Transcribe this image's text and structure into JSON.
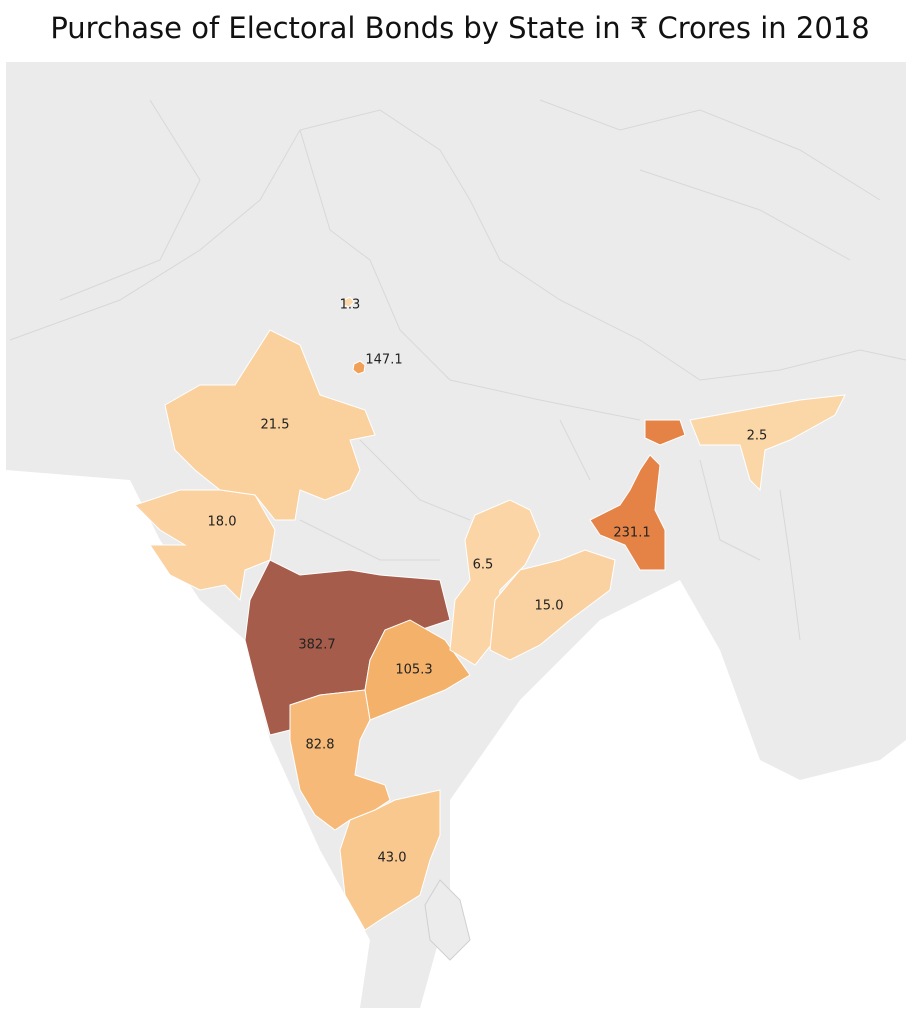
{
  "chart_data": {
    "type": "choropleth",
    "title": "Purchase of Electoral Bonds by State in ₹ Crores in 2018",
    "values": [
      1.3,
      147.1,
      21.5,
      18.0,
      382.7,
      105.3,
      82.8,
      43.0,
      6.5,
      15.0,
      231.1,
      2.5
    ],
    "value_labels": [
      "1.3",
      "147.1",
      "21.5",
      "18.0",
      "382.7",
      "105.3",
      "82.8",
      "43.0",
      "6.5",
      "15.0",
      "231.1",
      "2.5"
    ],
    "colors": [
      "#fbd7a9",
      "#f3a85b",
      "#e27a42",
      "#a65c4b"
    ]
  }
}
